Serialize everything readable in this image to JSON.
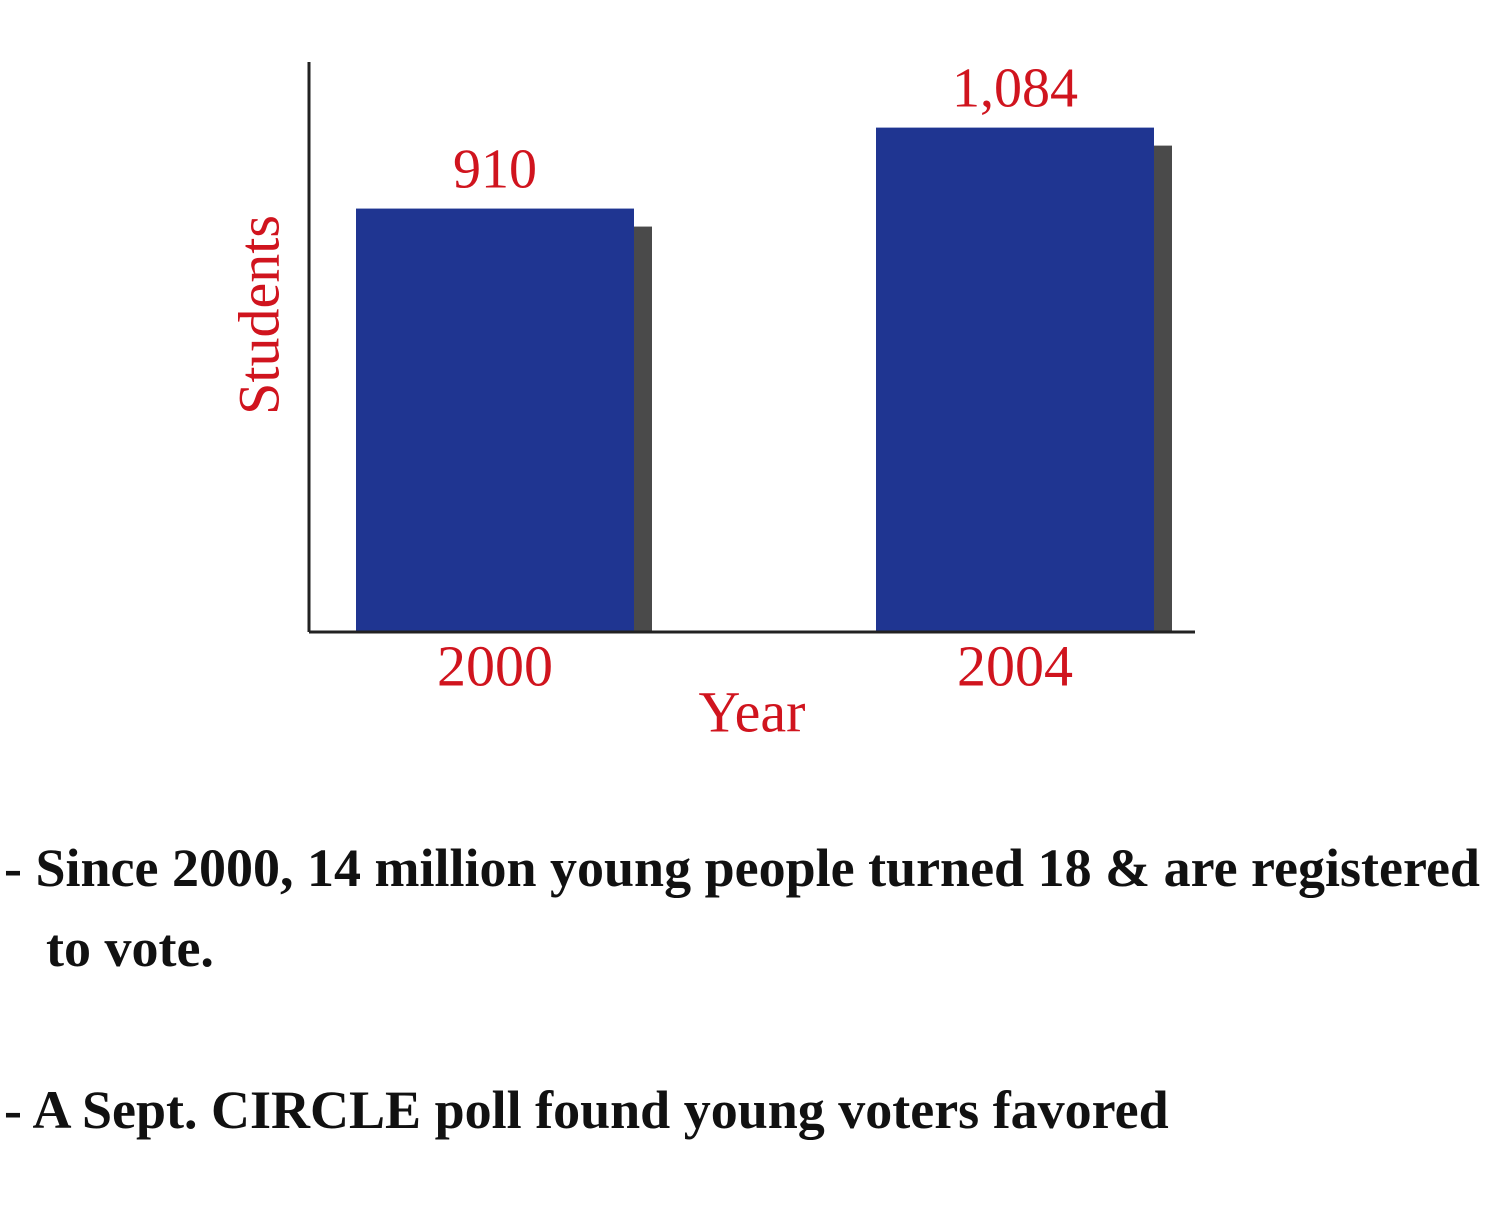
{
  "chart_data": {
    "type": "bar",
    "categories": [
      "2000",
      "2004"
    ],
    "values": [
      910,
      1084
    ],
    "value_labels": [
      "910",
      "1,084"
    ],
    "color": "#1f3591",
    "shadow_color": "#4a4a4a",
    "label_color": "#d0141e",
    "xlabel": "Year",
    "ylabel": "Students",
    "ylim": [
      0,
      1225
    ]
  },
  "bullets": [
    "- Since 2000, 14 million young people turned 18 & are registered to vote.",
    "- A Sept. CIRCLE poll found young voters favored"
  ]
}
